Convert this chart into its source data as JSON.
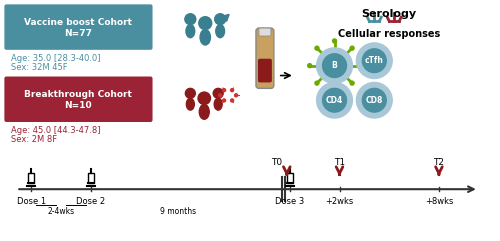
{
  "bg_color": "#ffffff",
  "teal_color": "#3a7f8f",
  "dark_red_color": "#8b1a1a",
  "teal_box_color": "#4a8fa0",
  "red_box_color": "#9b2335",
  "teal_text_color": "#4a8fa0",
  "red_text_color": "#9b2335",
  "cell_outer_color": "#a8c8d8",
  "cell_inner_color": "#4a8fa0",
  "cell_text_color": "#1a3a5a",
  "timeline_color": "#333333",
  "arrow_color": "#8b1a1a",
  "vaccine_box_label": "Vaccine boost Cohort\nN=77",
  "vaccine_age": "Age: 35.0 [28.3-40.0]",
  "vaccine_sex": "Sex: 32M 45F",
  "breakthrough_box_label": "Breakthrough Cohort\nN=10",
  "breakthrough_age": "Age: 45.0 [44.3-47.8]",
  "breakthrough_sex": "Sex: 2M 8F",
  "serology_label": "Serology",
  "cellular_label": "Cellular responses",
  "cells": [
    "B",
    "cTfh",
    "CD4",
    "CD8"
  ],
  "timeline_labels_top": [
    "T0",
    "T1",
    "T2"
  ],
  "timeline_labels_bottom": [
    "Dose 1",
    "Dose 2",
    "Dose 3",
    "+2wks",
    "+8wks"
  ],
  "timeline_interval_labels": [
    "2-4wks",
    "9 months"
  ],
  "figsize": [
    5.0,
    2.41
  ],
  "dpi": 100
}
